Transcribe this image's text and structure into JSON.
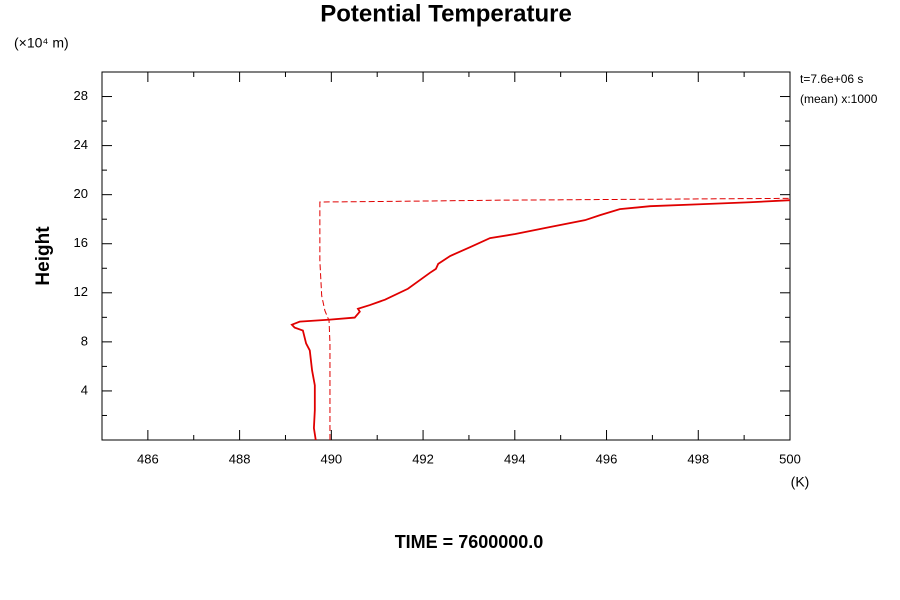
{
  "chart_data": {
    "type": "line",
    "title": "Potential Temperature",
    "y_unit": "(×10⁴ m)",
    "ylabel": "Height",
    "x_unit": "(K)",
    "annotations": [
      "t=7.6e+06 s",
      "(mean) x:1000"
    ],
    "footer": "TIME = 7600000.0",
    "xlim": [
      485,
      500
    ],
    "xticks": [
      486,
      488,
      490,
      492,
      494,
      496,
      498,
      500
    ],
    "ylim": [
      0,
      30
    ],
    "yticks": [
      4,
      8,
      12,
      16,
      20,
      24,
      28
    ],
    "series": [
      {
        "color": "#e00000",
        "style": "solid",
        "x": [
          489.66,
          489.62,
          489.64,
          489.64,
          489.58,
          489.53,
          489.45,
          489.38,
          489.2,
          489.14,
          489.31,
          489.97,
          490.51,
          490.62,
          490.58,
          490.84,
          491.17,
          491.67,
          492.15,
          492.28,
          492.33,
          492.59,
          493.03,
          493.46,
          494.01,
          494.77,
          495.53,
          495.86,
          496.29,
          496.95,
          498.04,
          499.13,
          500
        ],
        "values": [
          0,
          0.97,
          2.43,
          4.46,
          5.68,
          7.3,
          7.87,
          8.92,
          9.16,
          9.4,
          9.65,
          9.81,
          9.98,
          10.46,
          10.7,
          11.0,
          11.44,
          12.33,
          13.63,
          13.95,
          14.36,
          15.0,
          15.73,
          16.46,
          16.79,
          17.36,
          17.92,
          18.33,
          18.82,
          19.06,
          19.22,
          19.38,
          19.55
        ]
      },
      {
        "color": "#e00000",
        "style": "dashed",
        "x": [
          489.97,
          489.97,
          489.95,
          489.86,
          489.79,
          489.75,
          489.75,
          491.5,
          493.68,
          500
        ],
        "values": [
          0,
          7.87,
          9.73,
          10.54,
          11.76,
          14.6,
          19.4,
          19.46,
          19.55,
          19.7
        ]
      }
    ]
  }
}
